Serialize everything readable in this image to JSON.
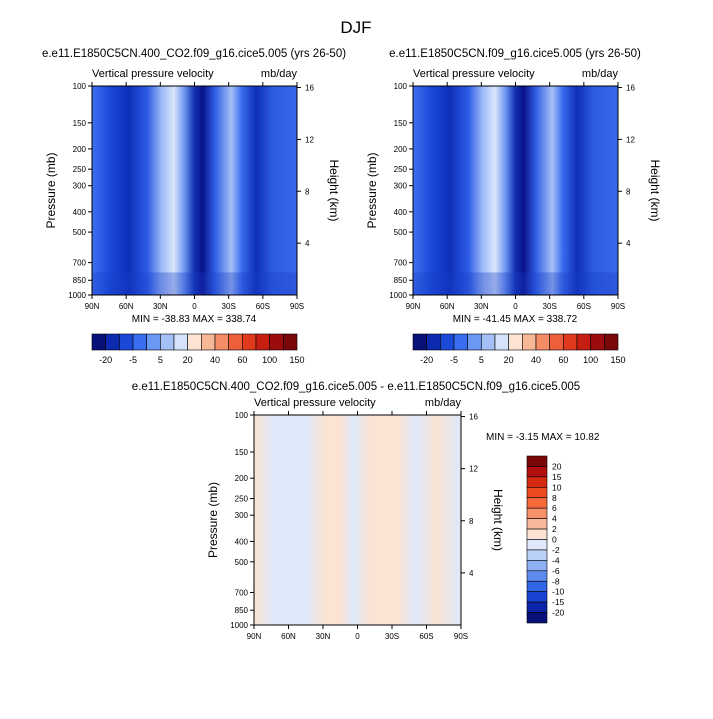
{
  "page": {
    "title": "DJF",
    "colors": {
      "background": "#ffffff",
      "text": "#000000"
    }
  },
  "chart_data": [
    {
      "type": "heatmap",
      "title": "e.e11.E1850C5CN.400_CO2.f09_g16.cice5.005 (yrs 26-50)",
      "left_subtitle": "Vertical pressure velocity",
      "right_subtitle": "mb/day",
      "xlabel": "",
      "ylabel": "Pressure (mb)",
      "ylabel_right": "Height (km)",
      "x_ticks": [
        "90N",
        "60N",
        "30N",
        "0",
        "30S",
        "60S",
        "90S"
      ],
      "x_values": [
        90,
        60,
        30,
        0,
        -30,
        -60,
        -90
      ],
      "xlim": [
        90,
        -90
      ],
      "y_ticks": [
        "100",
        "150",
        "200",
        "250",
        "300",
        "400",
        "500",
        "700",
        "850",
        "1000"
      ],
      "y_values": [
        100,
        150,
        200,
        250,
        300,
        400,
        500,
        700,
        850,
        1000
      ],
      "ylim": [
        1000,
        100
      ],
      "y_scale": "log",
      "height_ticks": [
        "16",
        "12",
        "8",
        "4"
      ],
      "height_values": [
        16,
        12,
        8,
        4
      ],
      "stats": "MIN = -38.83  MAX = 338.74",
      "min": -38.83,
      "max": 338.74,
      "colorbar": {
        "orientation": "horizontal",
        "labels": [
          "-20",
          "-5",
          "5",
          "20",
          "40",
          "60",
          "100",
          "150"
        ],
        "colors": [
          "#08107a",
          "#0c2bb0",
          "#1a49d8",
          "#3a6ef0",
          "#6a98f4",
          "#a4c0f6",
          "#d4e2fa",
          "#fde3d3",
          "#f7b898",
          "#f48c66",
          "#ec5f3a",
          "#e03a1d",
          "#c71e12",
          "#9c0c0c",
          "#7a0808"
        ]
      }
    },
    {
      "type": "heatmap",
      "title": "e.e11.E1850C5CN.f09_g16.cice5.005 (yrs 26-50)",
      "left_subtitle": "Vertical pressure velocity",
      "right_subtitle": "mb/day",
      "xlabel": "",
      "ylabel": "Pressure (mb)",
      "ylabel_right": "Height (km)",
      "x_ticks": [
        "90N",
        "60N",
        "30N",
        "0",
        "30S",
        "60S",
        "90S"
      ],
      "x_values": [
        90,
        60,
        30,
        0,
        -30,
        -60,
        -90
      ],
      "xlim": [
        90,
        -90
      ],
      "y_ticks": [
        "100",
        "150",
        "200",
        "250",
        "300",
        "400",
        "500",
        "700",
        "850",
        "1000"
      ],
      "y_values": [
        100,
        150,
        200,
        250,
        300,
        400,
        500,
        700,
        850,
        1000
      ],
      "ylim": [
        1000,
        100
      ],
      "y_scale": "log",
      "height_ticks": [
        "16",
        "12",
        "8",
        "4"
      ],
      "height_values": [
        16,
        12,
        8,
        4
      ],
      "stats": "MIN = -41.45  MAX = 338.72",
      "min": -41.45,
      "max": 338.72,
      "colorbar": {
        "orientation": "horizontal",
        "labels": [
          "-20",
          "-5",
          "5",
          "20",
          "40",
          "60",
          "100",
          "150"
        ],
        "colors": [
          "#08107a",
          "#0c2bb0",
          "#1a49d8",
          "#3a6ef0",
          "#6a98f4",
          "#a4c0f6",
          "#d4e2fa",
          "#fde3d3",
          "#f7b898",
          "#f48c66",
          "#ec5f3a",
          "#e03a1d",
          "#c71e12",
          "#9c0c0c",
          "#7a0808"
        ]
      }
    },
    {
      "type": "heatmap",
      "title": "e.e11.E1850C5CN.400_CO2.f09_g16.cice5.005 - e.e11.E1850C5CN.f09_g16.cice5.005",
      "left_subtitle": "Vertical pressure velocity",
      "right_subtitle": "mb/day",
      "xlabel": "",
      "ylabel": "Pressure (mb)",
      "ylabel_right": "Height (km)",
      "x_ticks": [
        "90N",
        "60N",
        "30N",
        "0",
        "30S",
        "60S",
        "90S"
      ],
      "x_values": [
        90,
        60,
        30,
        0,
        -30,
        -60,
        -90
      ],
      "xlim": [
        90,
        -90
      ],
      "y_ticks": [
        "100",
        "150",
        "200",
        "250",
        "300",
        "400",
        "500",
        "700",
        "850",
        "1000"
      ],
      "y_values": [
        100,
        150,
        200,
        250,
        300,
        400,
        500,
        700,
        850,
        1000
      ],
      "ylim": [
        1000,
        100
      ],
      "y_scale": "log",
      "height_ticks": [
        "16",
        "12",
        "8",
        "4"
      ],
      "height_values": [
        16,
        12,
        8,
        4
      ],
      "stats": "MIN =  -3.15   MAX =  10.82",
      "min": -3.15,
      "max": 10.82,
      "colorbar": {
        "orientation": "vertical",
        "labels": [
          "20",
          "15",
          "10",
          "8",
          "6",
          "4",
          "2",
          "0",
          "-2",
          "-4",
          "-6",
          "-8",
          "-10",
          "-15",
          "-20"
        ],
        "colors": [
          "#7a0808",
          "#b30f0f",
          "#d62a10",
          "#ec4a1f",
          "#f56a3a",
          "#f8906a",
          "#fab89a",
          "#fde3d3",
          "#dfe9fb",
          "#b9cff8",
          "#8cb0f3",
          "#5d8cee",
          "#3266e6",
          "#1a42d2",
          "#0c25a8",
          "#08107a"
        ]
      }
    }
  ]
}
